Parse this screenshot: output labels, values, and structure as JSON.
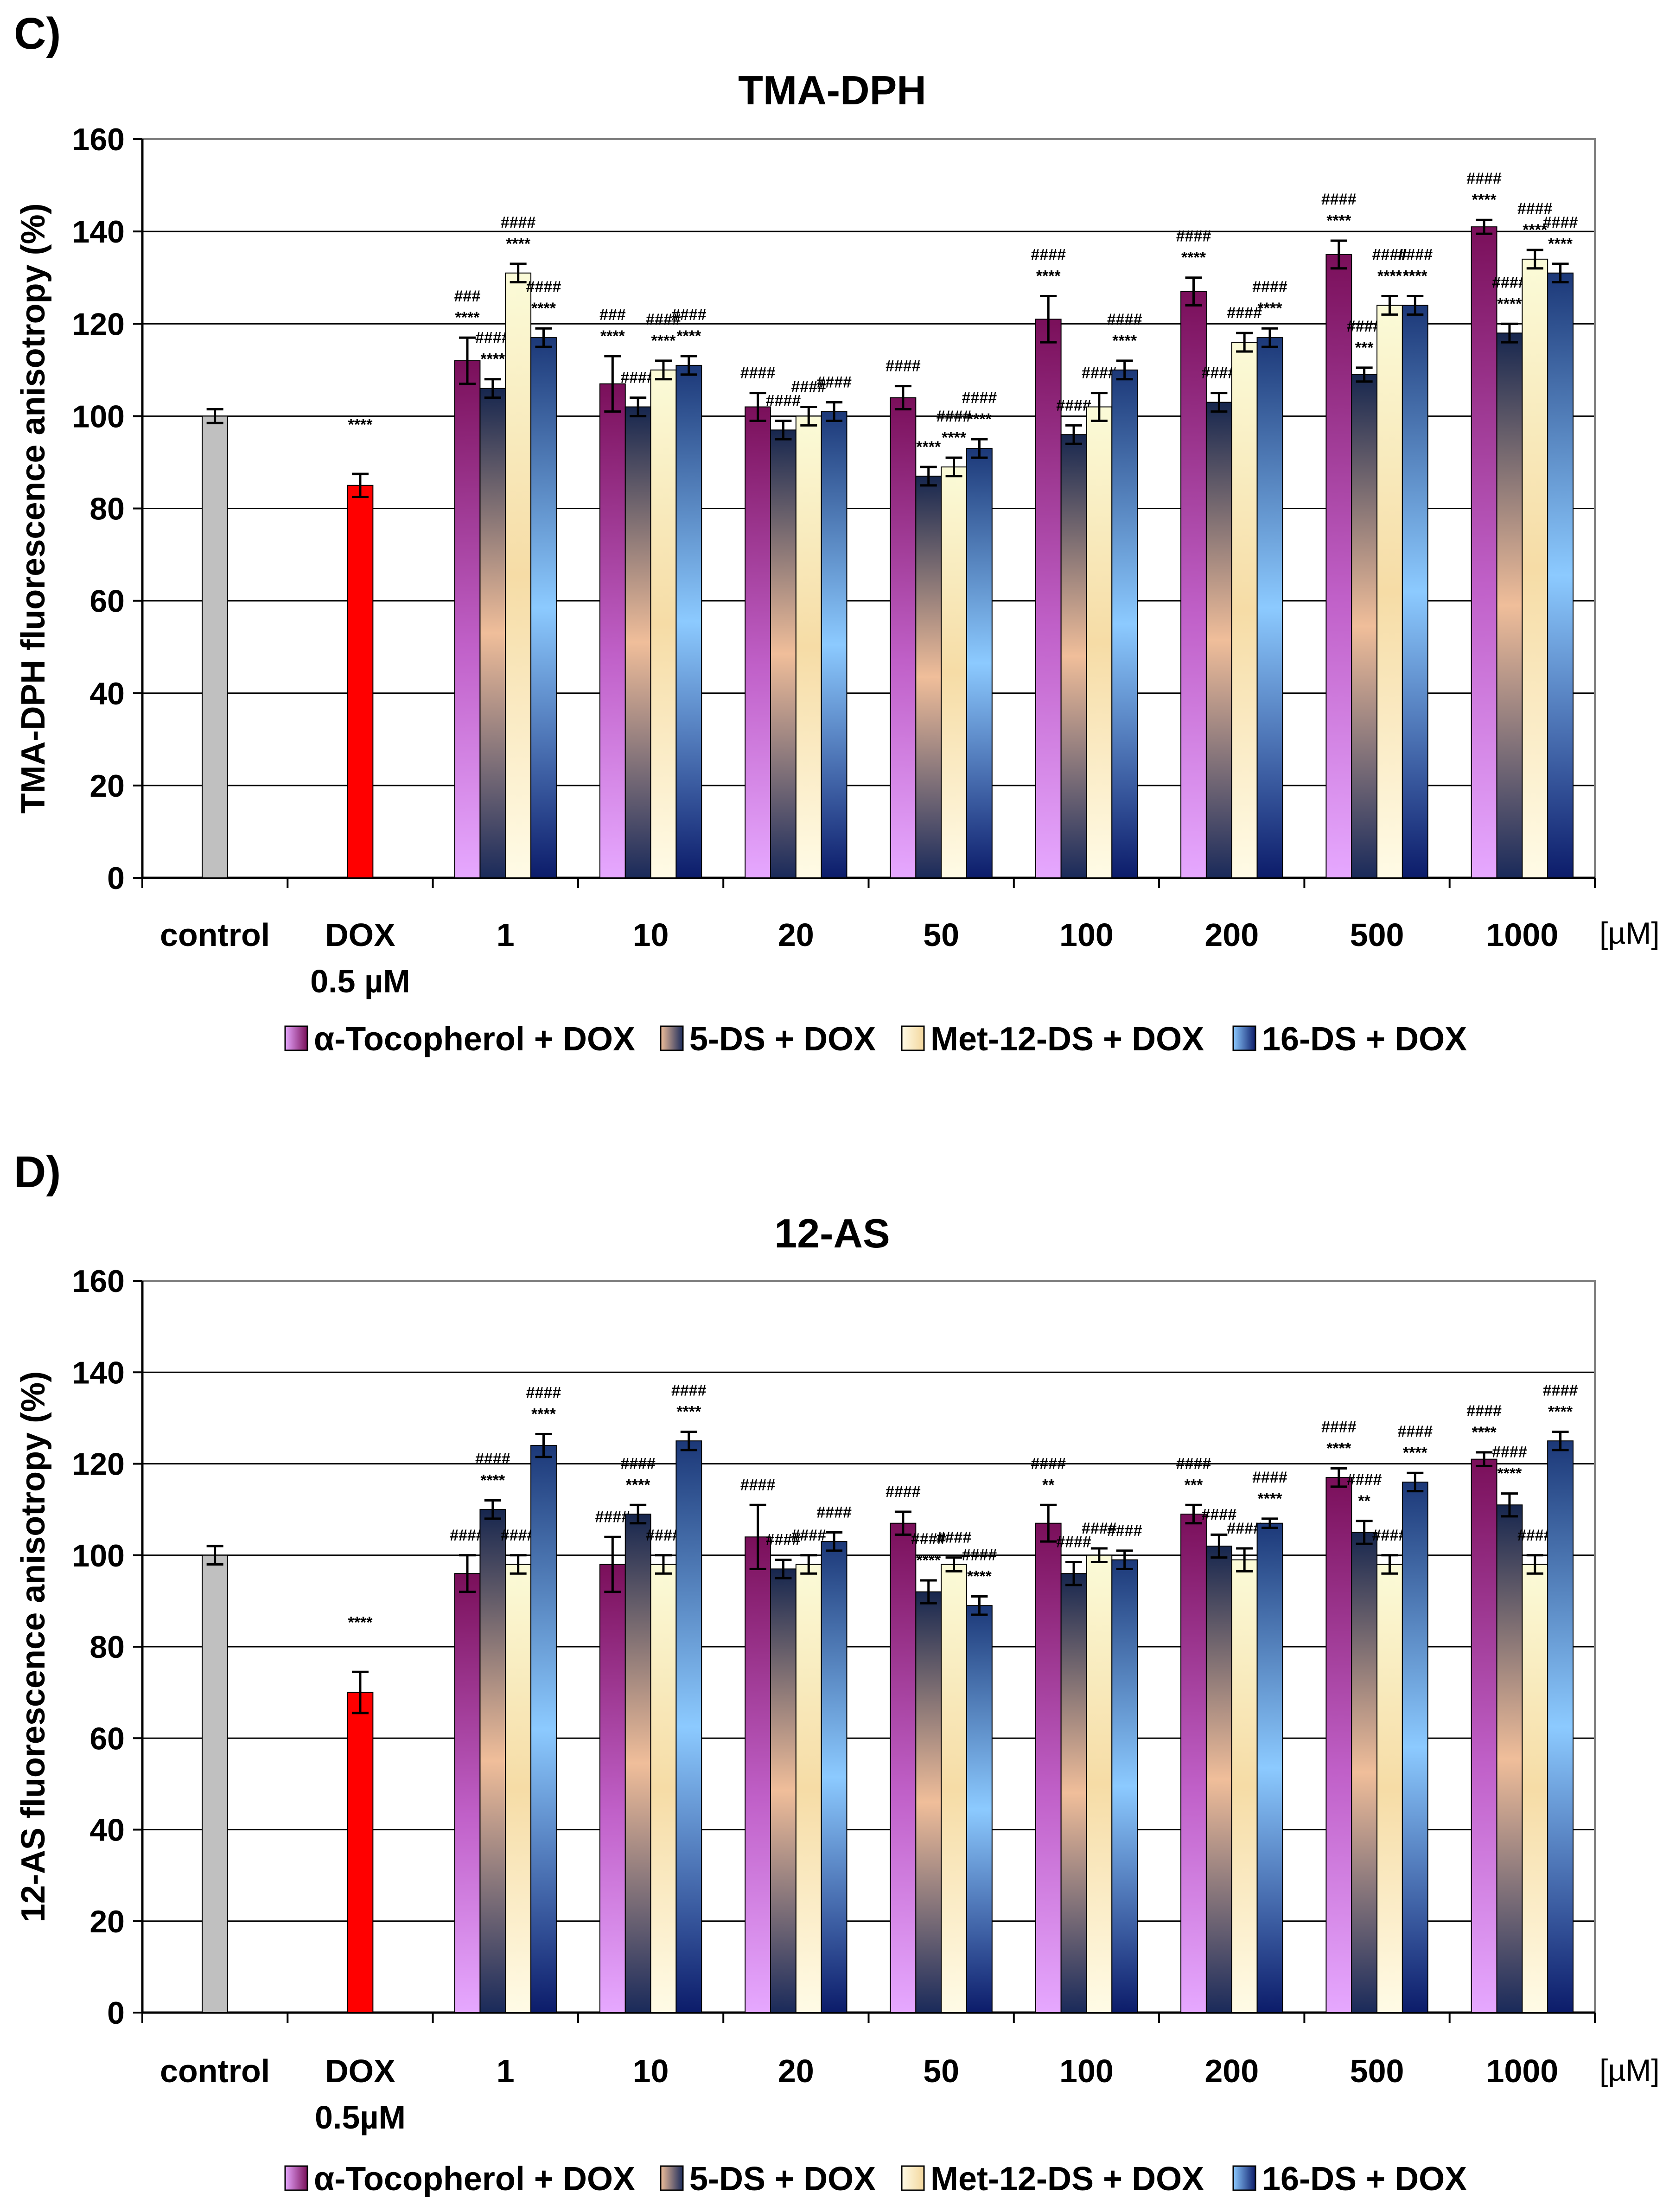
{
  "chart_data": [
    {
      "type": "bar",
      "panel_label": "C)",
      "title": "TMA-DPH",
      "ylabel": "TMA-DPH fluorescence anisotropy (%)",
      "ylim": [
        0,
        160
      ],
      "yticks": [
        0,
        20,
        40,
        60,
        80,
        100,
        120,
        140,
        160
      ],
      "grid": true,
      "unit_label": "[µM]",
      "control": {
        "label": "control",
        "value": 100,
        "error": 1.5,
        "color": "#c0c0c0"
      },
      "dox": {
        "label": "DOX",
        "sublabel": "0.5 µM",
        "value": 85,
        "error": 2.5,
        "color": "#ff0000",
        "annotation": "****"
      },
      "categories": [
        "1",
        "10",
        "20",
        "50",
        "100",
        "200",
        "500",
        "1000"
      ],
      "series": [
        {
          "name": "α-Tocopherol + DOX",
          "values": [
            112,
            107,
            102,
            104,
            121,
            127,
            135,
            141
          ],
          "errors": [
            5,
            6,
            3,
            2.5,
            5,
            3,
            3,
            1.5
          ],
          "annotations": [
            [
              "****",
              "###"
            ],
            [
              "****",
              "###"
            ],
            [
              "####"
            ],
            [
              "####"
            ],
            [
              "****",
              "####"
            ],
            [
              "****",
              "####"
            ],
            [
              "****",
              "####"
            ],
            [
              "****",
              "####"
            ]
          ]
        },
        {
          "name": "5-DS + DOX",
          "values": [
            106,
            102,
            97,
            87,
            96,
            103,
            109,
            118
          ],
          "errors": [
            2,
            2,
            2,
            2,
            2,
            2,
            1.5,
            2
          ],
          "annotations": [
            [
              "****",
              "####"
            ],
            [
              "####"
            ],
            [
              "####"
            ],
            [
              "****"
            ],
            [
              "####"
            ],
            [
              "####"
            ],
            [
              "***",
              "####"
            ],
            [
              "****",
              "####"
            ]
          ]
        },
        {
          "name": "Met-12-DS + DOX",
          "values": [
            131,
            110,
            100,
            89,
            102,
            116,
            124,
            134
          ],
          "errors": [
            2,
            2,
            2,
            2,
            3,
            2,
            2,
            2
          ],
          "annotations": [
            [
              "****",
              "####"
            ],
            [
              "****",
              "####"
            ],
            [
              "####"
            ],
            [
              "****",
              "####"
            ],
            [
              "####"
            ],
            [
              "####"
            ],
            [
              "****",
              "####"
            ],
            [
              "****",
              "####"
            ]
          ]
        },
        {
          "name": "16-DS + DOX",
          "values": [
            117,
            111,
            101,
            93,
            110,
            117,
            124,
            131
          ],
          "errors": [
            2,
            2,
            2,
            2,
            2,
            2,
            2,
            2
          ],
          "annotations": [
            [
              "****",
              "####"
            ],
            [
              "****",
              "####"
            ],
            [
              "####"
            ],
            [
              "****",
              "####"
            ],
            [
              "****",
              "####"
            ],
            [
              "****",
              "####"
            ],
            [
              "****",
              "####"
            ],
            [
              "****",
              "####"
            ]
          ]
        }
      ]
    },
    {
      "type": "bar",
      "panel_label": "D)",
      "title": "12-AS",
      "ylabel": "12-AS fluorescence anisotropy (%)",
      "ylim": [
        0,
        160
      ],
      "yticks": [
        0,
        20,
        40,
        60,
        80,
        100,
        120,
        140,
        160
      ],
      "grid": true,
      "unit_label": "[µM]",
      "control": {
        "label": "control",
        "value": 100,
        "error": 2,
        "color": "#c0c0c0"
      },
      "dox": {
        "label": "DOX",
        "sublabel": "0.5µM",
        "value": 70,
        "error": 4.5,
        "color": "#ff0000",
        "annotation": "****"
      },
      "categories": [
        "1",
        "10",
        "20",
        "50",
        "100",
        "200",
        "500",
        "1000"
      ],
      "series": [
        {
          "name": "α-Tocopherol + DOX",
          "values": [
            96,
            98,
            104,
            107,
            107,
            109,
            117,
            121
          ],
          "errors": [
            4,
            6,
            7,
            2.5,
            4,
            2,
            2,
            1.5
          ],
          "annotations": [
            [
              "####"
            ],
            [
              "####"
            ],
            [
              "####"
            ],
            [
              "####"
            ],
            [
              "**",
              "####"
            ],
            [
              "***",
              "####"
            ],
            [
              "****",
              "####"
            ],
            [
              "****",
              "####"
            ]
          ]
        },
        {
          "name": "5-DS + DOX",
          "values": [
            110,
            109,
            97,
            92,
            96,
            102,
            105,
            111
          ],
          "errors": [
            2,
            2,
            2,
            2.5,
            2.5,
            2.5,
            2.5,
            2.5
          ],
          "annotations": [
            [
              "****",
              "####"
            ],
            [
              "****",
              "####"
            ],
            [
              "####"
            ],
            [
              "****",
              "####"
            ],
            [
              "####"
            ],
            [
              "####"
            ],
            [
              "**",
              "####"
            ],
            [
              "****",
              "####"
            ]
          ]
        },
        {
          "name": "Met-12-DS + DOX",
          "values": [
            98,
            98,
            98,
            98,
            100,
            99,
            98,
            98
          ],
          "errors": [
            2,
            2,
            2,
            1.5,
            1.5,
            2.5,
            2,
            2
          ],
          "annotations": [
            [
              "####"
            ],
            [
              "####"
            ],
            [
              "####"
            ],
            [
              "####"
            ],
            [
              "####"
            ],
            [
              "####"
            ],
            [
              "####"
            ],
            [
              "####"
            ]
          ]
        },
        {
          "name": "16-DS + DOX",
          "values": [
            124,
            125,
            103,
            89,
            99,
            107,
            116,
            125
          ],
          "errors": [
            2.5,
            2,
            2,
            2,
            2,
            1,
            2,
            2
          ],
          "annotations": [
            [
              "****",
              "####"
            ],
            [
              "****",
              "####"
            ],
            [
              "####"
            ],
            [
              "****",
              "####"
            ],
            [
              "####"
            ],
            [
              "****",
              "####"
            ],
            [
              "****",
              "####"
            ],
            [
              "****",
              "####"
            ]
          ]
        }
      ]
    }
  ]
}
